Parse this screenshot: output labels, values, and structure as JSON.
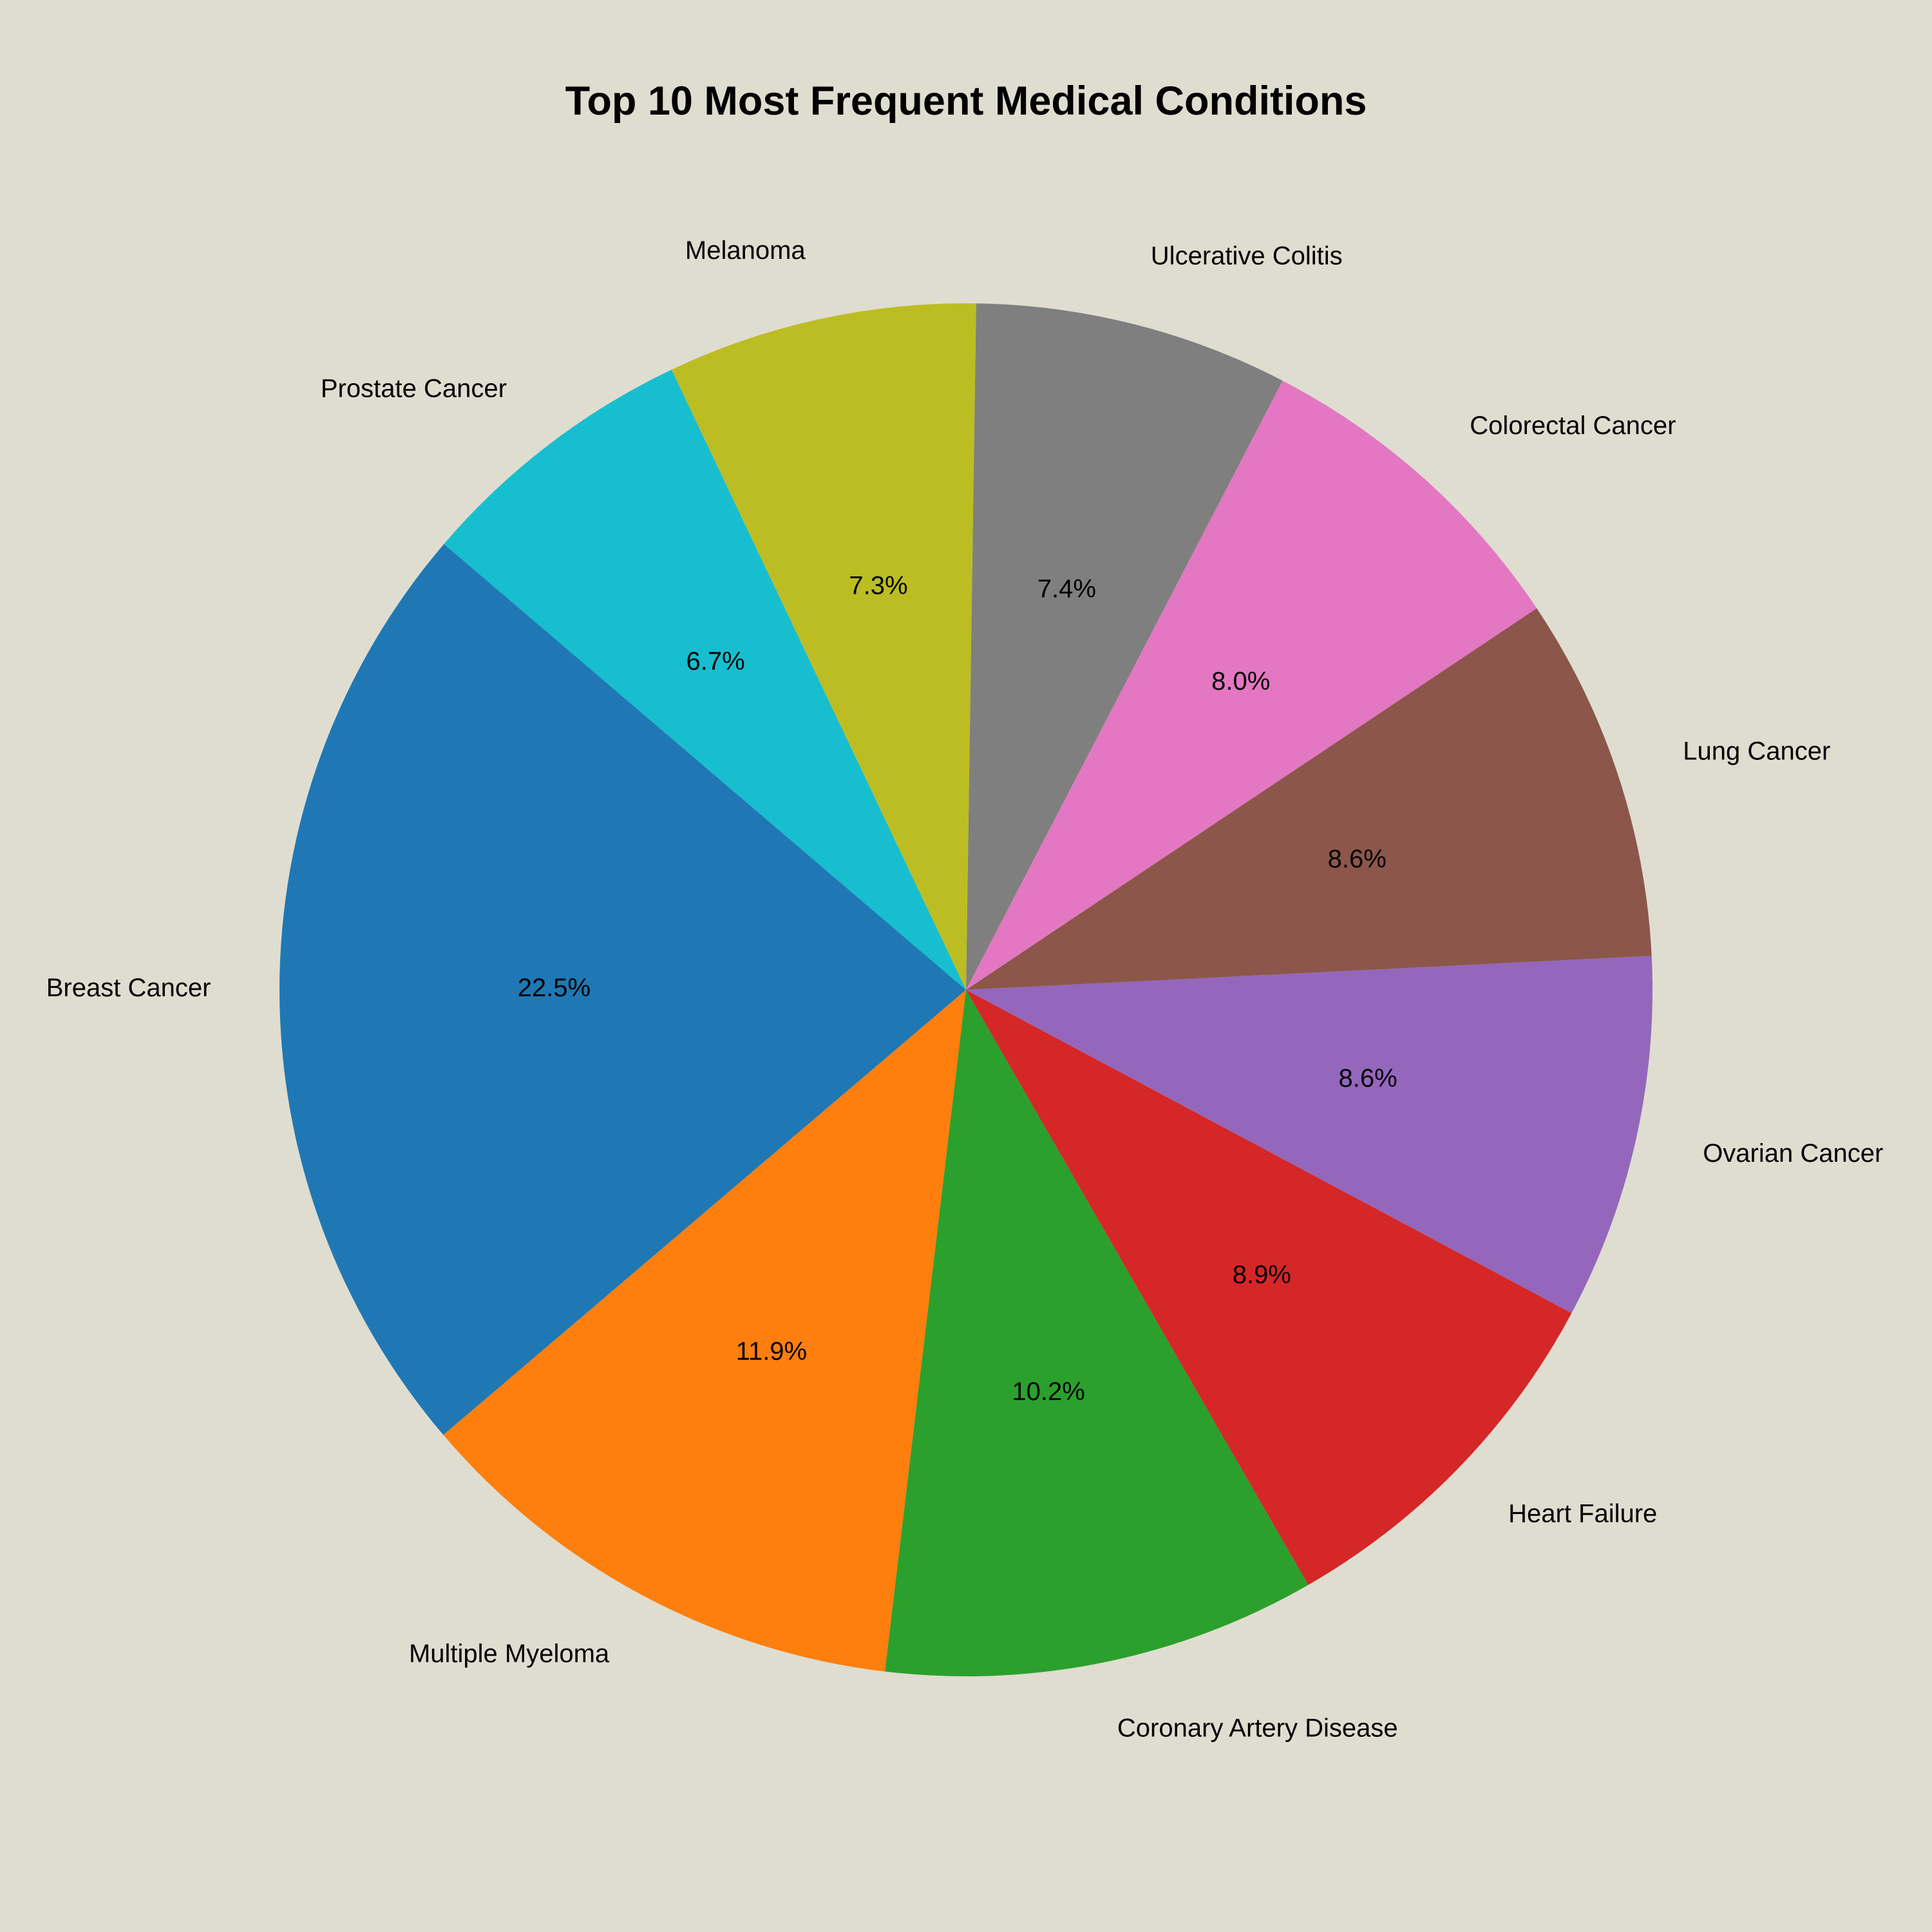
{
  "colors": {
    "background": "#DEDDCF"
  },
  "chart_data": {
    "type": "pie",
    "title": "Top 10 Most Frequent Medical Conditions",
    "start_angle_deg": 139.5,
    "direction": "counterclockwise",
    "slices": [
      {
        "label": "Breast Cancer",
        "percent": 22.5,
        "pct_text": "22.5%",
        "color": "#1F77B4"
      },
      {
        "label": "Multiple Myeloma",
        "percent": 11.9,
        "pct_text": "11.9%",
        "color": "#FF7F0E"
      },
      {
        "label": "Coronary Artery Disease",
        "percent": 10.2,
        "pct_text": "10.2%",
        "color": "#2CA02C"
      },
      {
        "label": "Heart Failure",
        "percent": 8.9,
        "pct_text": "8.9%",
        "color": "#D62728"
      },
      {
        "label": "Ovarian Cancer",
        "percent": 8.6,
        "pct_text": "8.6%",
        "color": "#9467BD"
      },
      {
        "label": "Lung Cancer",
        "percent": 8.6,
        "pct_text": "8.6%",
        "color": "#8C564B"
      },
      {
        "label": "Colorectal Cancer",
        "percent": 8.0,
        "pct_text": "8.0%",
        "color": "#E377C2"
      },
      {
        "label": "Ulcerative Colitis",
        "percent": 7.4,
        "pct_text": "7.4%",
        "color": "#7F7F7F"
      },
      {
        "label": "Melanoma",
        "percent": 7.3,
        "pct_text": "7.3%",
        "color": "#BCBD22"
      },
      {
        "label": "Prostate Cancer",
        "percent": 6.7,
        "pct_text": "6.7%",
        "color": "#17BECF"
      }
    ]
  }
}
